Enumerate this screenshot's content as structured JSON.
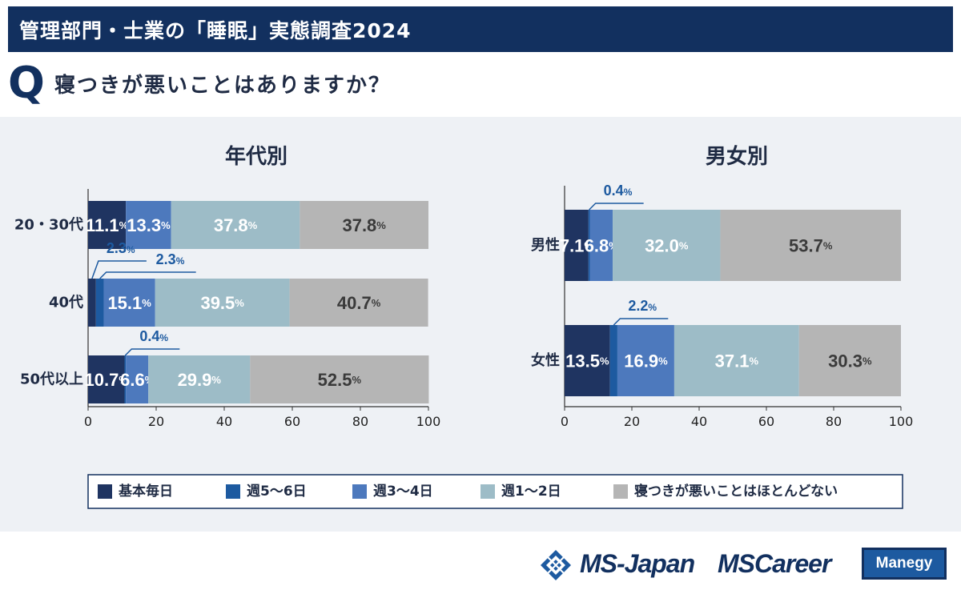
{
  "header": {
    "title": "管理部門・士業の「睡眠」実態調査2024",
    "question_mark": "Q",
    "question": "寝つきが悪いことはありますか？"
  },
  "colors": {
    "s0": "#1f3461",
    "s1": "#1d5aa0",
    "s2": "#4d79bd",
    "s3": "#9dbcc7",
    "s4": "#b5b5b5",
    "annot": "#1d5aa0"
  },
  "chart_data": [
    {
      "type": "bar",
      "orientation": "horizontal",
      "stacked": true,
      "title": "年代別",
      "categories": [
        "20・30代",
        "40代",
        "50代以上"
      ],
      "series": [
        {
          "name": "基本毎日",
          "values": [
            11.1,
            2.3,
            10.7
          ]
        },
        {
          "name": "週5〜6日",
          "values": [
            0,
            2.3,
            0.4
          ]
        },
        {
          "name": "週3〜4日",
          "values": [
            13.3,
            15.1,
            6.6
          ]
        },
        {
          "name": "週1〜2日",
          "values": [
            37.8,
            39.5,
            29.9
          ]
        },
        {
          "name": "寝つきが悪いことはほとんどない",
          "values": [
            37.8,
            40.7,
            52.5
          ]
        }
      ],
      "xlim": [
        0,
        100
      ],
      "xticks": [
        "0",
        "20",
        "40",
        "60",
        "80",
        "100"
      ]
    },
    {
      "type": "bar",
      "orientation": "horizontal",
      "stacked": true,
      "title": "男女別",
      "categories": [
        "男性",
        "女性"
      ],
      "series": [
        {
          "name": "基本毎日",
          "values": [
            7.1,
            13.5
          ]
        },
        {
          "name": "週5〜6日",
          "values": [
            0.4,
            2.2
          ]
        },
        {
          "name": "週3〜4日",
          "values": [
            6.8,
            16.9
          ]
        },
        {
          "name": "週1〜2日",
          "values": [
            32.0,
            37.1
          ]
        },
        {
          "name": "寝つきが悪いことはほとんどない",
          "values": [
            53.7,
            30.3
          ]
        }
      ],
      "xlim": [
        0,
        100
      ],
      "xticks": [
        "0",
        "20",
        "40",
        "60",
        "80",
        "100"
      ]
    }
  ],
  "legend": [
    "基本毎日",
    "週5〜6日",
    "週3〜4日",
    "週1〜2日",
    "寝つきが悪いことはほとんどない"
  ],
  "footer": {
    "logo1": "MS-Japan",
    "logo2": "MSCareer",
    "logo3": "Manegy"
  }
}
